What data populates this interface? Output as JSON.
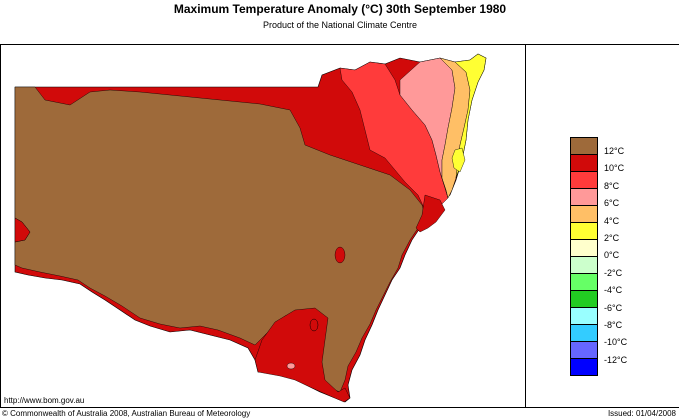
{
  "header": {
    "title": "Maximum Temperature Anomaly (°C)  30th September 1980",
    "subtitle": "Product of the National Climate Centre"
  },
  "legend": {
    "items": [
      {
        "label": "12°C",
        "color": "#9e6a3a"
      },
      {
        "label": "10°C",
        "color": "#d10a0a"
      },
      {
        "label": "8°C",
        "color": "#ff3b3b"
      },
      {
        "label": "6°C",
        "color": "#ff9999"
      },
      {
        "label": "4°C",
        "color": "#ffbf66"
      },
      {
        "label": "2°C",
        "color": "#ffff33"
      },
      {
        "label": "0°C",
        "color": "#ffffcc"
      },
      {
        "label": "-2°C",
        "color": "#ccffcc"
      },
      {
        "label": "-4°C",
        "color": "#66ff66"
      },
      {
        "label": "-6°C",
        "color": "#22cc22"
      },
      {
        "label": "-8°C",
        "color": "#99ffff"
      },
      {
        "label": "-10°C",
        "color": "#33ccff"
      },
      {
        "label": "-12°C",
        "color": "#6666ff"
      },
      {
        "label": "",
        "color": "#0000ff"
      }
    ]
  },
  "footer": {
    "url": "http://www.bom.gov.au",
    "copyright": "© Commonwealth of Australia 2008, Australian Bureau of Meteorology",
    "issued": "Issued: 01/04/2008"
  },
  "colors": {
    "brown": "#9e6a3a",
    "red_dark": "#d10a0a",
    "red": "#ff3b3b",
    "pink": "#ff9999",
    "orange": "#ffbf66",
    "yellow": "#ffff33"
  }
}
